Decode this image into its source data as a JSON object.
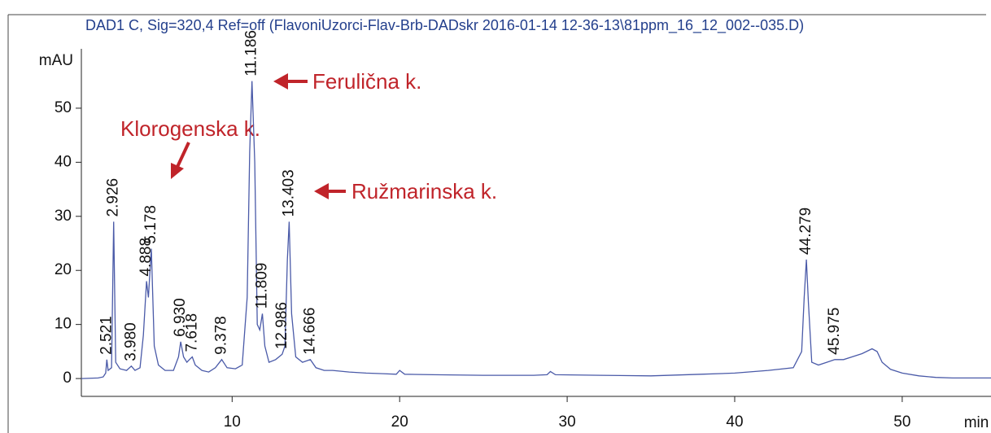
{
  "chart_data": {
    "type": "line",
    "title": "DAD1 C, Sig=320,4 Ref=off (FlavoniUzorci-Flav-Brb-DADskr 2016-01-14 12-36-13\\81ppm_16_12_002--035.D)",
    "x_label": "min",
    "y_label": "mAU",
    "color": "#4a5aa8",
    "x": [
      1.0,
      2.0,
      2.3,
      2.45,
      2.521,
      2.6,
      2.8,
      2.926,
      3.05,
      3.3,
      3.7,
      3.98,
      4.2,
      4.5,
      4.7,
      4.888,
      5.0,
      5.178,
      5.35,
      5.6,
      6.0,
      6.5,
      6.8,
      6.93,
      7.1,
      7.3,
      7.45,
      7.618,
      7.8,
      8.2,
      8.6,
      9.0,
      9.378,
      9.7,
      10.2,
      10.6,
      10.9,
      11.05,
      11.186,
      11.35,
      11.5,
      11.65,
      11.809,
      11.95,
      12.2,
      12.6,
      12.986,
      13.15,
      13.3,
      13.403,
      13.55,
      13.8,
      14.2,
      14.666,
      15.0,
      15.5,
      16,
      17,
      18,
      19,
      19.8,
      20.0,
      20.3,
      22,
      25,
      28,
      28.8,
      29.0,
      29.3,
      32,
      35,
      38,
      40,
      42,
      43.5,
      44.0,
      44.15,
      44.279,
      44.4,
      44.6,
      45,
      45.5,
      45.975,
      46.5,
      47,
      47.6,
      48.2,
      48.5,
      48.8,
      49.3,
      50,
      51,
      52,
      53,
      55.3
    ],
    "values": [
      0,
      0.1,
      0.3,
      1,
      3.5,
      1.5,
      2,
      29,
      3,
      1.8,
      1.5,
      2.3,
      1.5,
      2,
      8,
      18,
      15,
      24,
      6,
      2.5,
      1.5,
      1.5,
      4,
      6.8,
      4,
      3,
      3.5,
      4,
      2.5,
      1.5,
      1.2,
      2,
      3.5,
      2,
      1.8,
      2.5,
      15,
      42,
      55,
      40,
      10,
      9,
      12,
      6,
      3,
      3.5,
      4.5,
      6,
      22,
      29,
      12,
      4,
      3,
      3.5,
      2,
      1.5,
      1.5,
      1.2,
      1,
      0.9,
      0.8,
      1.5,
      0.8,
      0.7,
      0.6,
      0.6,
      0.7,
      1.3,
      0.7,
      0.6,
      0.5,
      0.8,
      1,
      1.5,
      2,
      5,
      15,
      22,
      14,
      3,
      2.5,
      3,
      3.5,
      3.5,
      4,
      4.6,
      5.5,
      5,
      3,
      1.7,
      1,
      0.5,
      0.2,
      0.1,
      0.1
    ],
    "peak_labels": [
      2.521,
      2.926,
      {
        "value": 3.98,
        "label": "3.980"
      },
      4.888,
      5.178,
      {
        "value": 6.93,
        "label": "6.930"
      },
      7.618,
      9.378,
      11.186,
      11.809,
      12.986,
      13.403,
      14.666,
      44.279,
      45.975
    ],
    "annotations": [
      "Klorogenska k.",
      "Ferulična k.",
      "Ružmarinska k."
    ],
    "xlim": [
      1,
      55.3
    ],
    "ylim": [
      -3.3,
      67
    ],
    "xticks": [
      10,
      20,
      30,
      40,
      50
    ],
    "yticks": [
      0,
      10,
      20,
      30,
      40,
      50
    ]
  }
}
